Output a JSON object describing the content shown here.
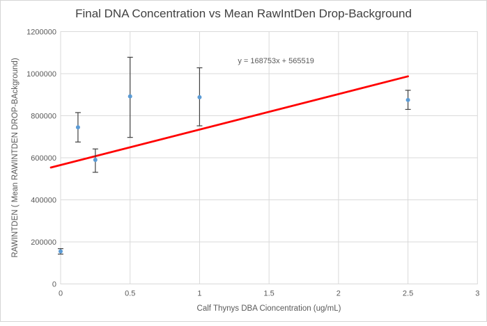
{
  "window": {
    "background": "#ffffff",
    "border_color": "#d5d5d5"
  },
  "chart_data": {
    "type": "scatter",
    "title": "Final DNA Concentration vs Mean RawIntDen Drop-Background",
    "xlabel": "Calf Thynys DBA Cioncentration (ug/mL)",
    "ylabel": "RAWINTDEN ( Mean RAWINTDEN DROP-BAckground)",
    "xlim": [
      0,
      3
    ],
    "ylim": [
      0,
      1200000
    ],
    "x_ticks": [
      0,
      0.5,
      1,
      1.5,
      2,
      2.5,
      3
    ],
    "y_ticks": [
      0,
      200000,
      400000,
      600000,
      800000,
      1000000,
      1200000
    ],
    "grid": true,
    "legend_position": "none",
    "points": [
      {
        "x": 0,
        "y": 155000,
        "err_plus": 13000,
        "err_minus": 13000
      },
      {
        "x": 0.125,
        "y": 745000,
        "err_plus": 70000,
        "err_minus": 70000
      },
      {
        "x": 0.25,
        "y": 590000,
        "err_plus": 52000,
        "err_minus": 59000
      },
      {
        "x": 0.5,
        "y": 892000,
        "err_plus": 186000,
        "err_minus": 195000
      },
      {
        "x": 1,
        "y": 888000,
        "err_plus": 140000,
        "err_minus": 136000
      },
      {
        "x": 2.5,
        "y": 875000,
        "err_plus": 46000,
        "err_minus": 45000
      }
    ],
    "trendline": {
      "slope": 168753,
      "intercept": 565519,
      "x_start": -0.07,
      "x_end": 2.5
    },
    "annotation": {
      "text": "y = 168753x + 565519",
      "x": 1.55,
      "y": 1058000
    },
    "colors": {
      "marker": "#5b9bd5",
      "error_bar": "#404040",
      "gridline": "#d9d9d9",
      "plot_border": "#d9d9d9",
      "axis_text": "#595959",
      "title_text": "#404040",
      "trendline": "#ff0000"
    }
  }
}
